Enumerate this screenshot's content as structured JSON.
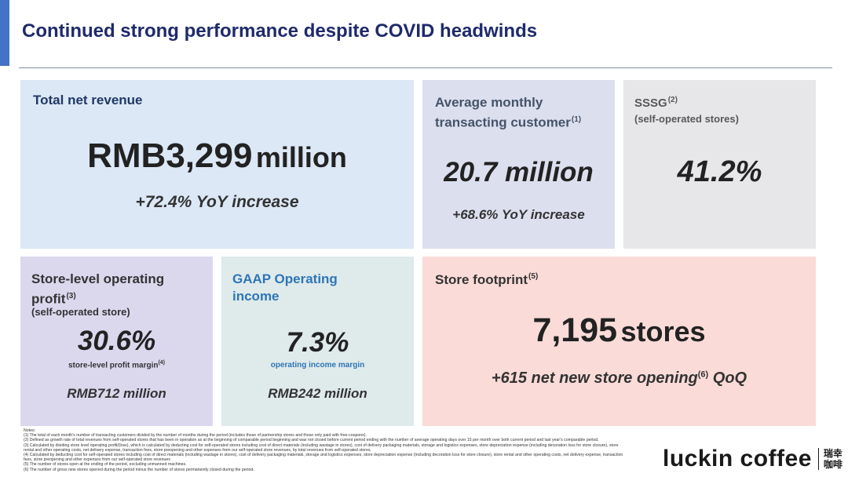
{
  "page": {
    "title": "Continued strong performance despite COVID headwinds"
  },
  "colors": {
    "accent_bar": "#4472c4",
    "title": "#1f2a6b",
    "revenue_card": "#dce8f6",
    "customer_card": "#dcdfee",
    "sssg_card": "#e7e6e8",
    "store_profit_card": "#dbd8ee",
    "gaap_card": "#dfeaea",
    "footprint_card": "#fadbd8"
  },
  "revenue": {
    "label": "Total net revenue",
    "value": "RMB3,299",
    "unit": "million",
    "change": "+72.4% YoY increase"
  },
  "customers": {
    "label_line1": "Average monthly",
    "label_line2": "transacting customer",
    "note_ref": "(1)",
    "value": "20.7 million",
    "change": "+68.6% YoY increase"
  },
  "sssg": {
    "label": "SSSG",
    "note_ref": "(2)",
    "sublabel": "(self-operated stores)",
    "value": "41.2%"
  },
  "store_profit": {
    "label_line1": "Store-level operating",
    "label_line2": "profit",
    "note_ref": "(3)",
    "sublabel": "(self-operated store)",
    "value": "30.6%",
    "caption": "store-level profit margin",
    "caption_ref": "(4)",
    "amount": "RMB712 million"
  },
  "gaap": {
    "label_line1": "GAAP Operating",
    "label_line2": "income",
    "value": "7.3%",
    "caption": "operating income margin",
    "amount": "RMB242 million"
  },
  "footprint": {
    "label": "Store footprint",
    "note_ref": "(5)",
    "value": "7,195",
    "unit": "stores",
    "change_pre": "+615 net new store opening",
    "change_ref": "(6)",
    "change_post": " QoQ"
  },
  "notes": {
    "heading": "Notes:",
    "lines": [
      "(1) The total of each month's number of transacting customers divided by the number of months during the period (includes those of partnership stores and those only paid with free-coupons).",
      "(2) Defined as growth rate of total revenues from self-operated stores that has been in operation as at the beginning of comparable period beginning and was not closed before current period ending with the number of average operating days over 15 per month over both current period and last year's comparable period.",
      "(3) Calculated by dividing store level operating profit/(loss), which is calculated by deducting cost for self-operated stores including cost of direct materials (including wastage in stores), cost of delivery packaging materials, storage and logistics expenses, store depreciation expense (including decoration loss for store closure), store",
      "rental and other operating costs, net delivery expense, transaction fees, store preopening and other expenses from our self-operated store revenues, by total revenues from self-operated stores.",
      "(4) Calculated by deducting cost for self-operated stores including cost of direct materials (including wastage in stores), cost of delivery packaging materials, storage and logistics expenses, store depreciation expense (including decoration loss for store closure), store rental and other operating costs, net delivery expense, transaction",
      "fees, store preopening and other expenses from our self-operated store revenues",
      "(5) The number of stores open at the ending of the period, excluding unmanned machines.",
      "(6) The number of gross new stores opened during the period minus the number of stores permanently closed during the period."
    ]
  },
  "logo": {
    "wordmark": "luckin coffee",
    "cn_line1": "瑞幸",
    "cn_line2": "咖啡"
  }
}
